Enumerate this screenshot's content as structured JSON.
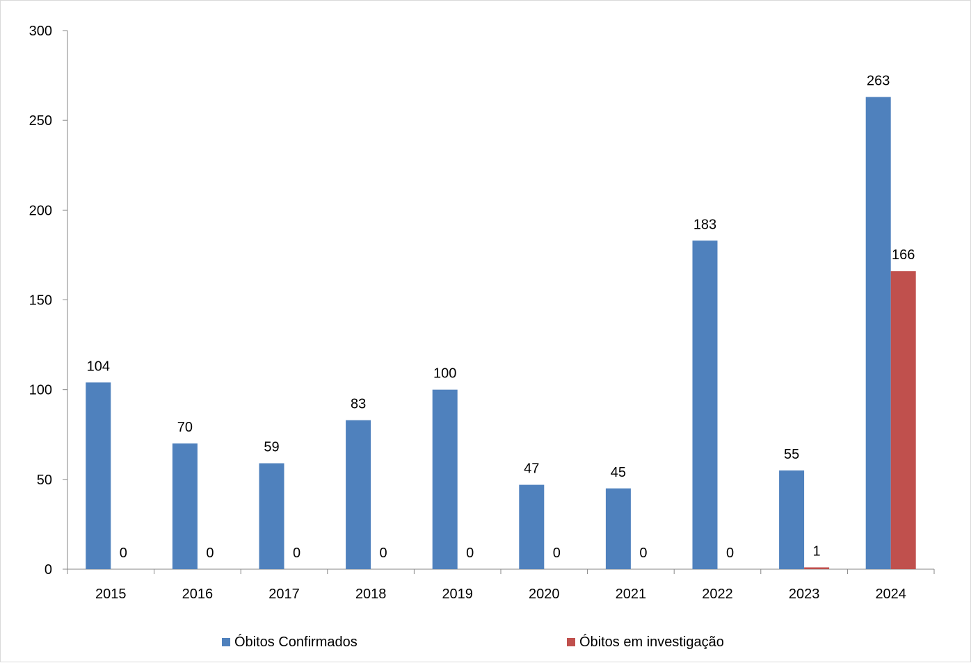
{
  "chart_data": {
    "type": "bar",
    "title": "",
    "xlabel": "",
    "ylabel": "",
    "categories": [
      "2015",
      "2016",
      "2017",
      "2018",
      "2019",
      "2020",
      "2021",
      "2022",
      "2023",
      "2024"
    ],
    "series": [
      {
        "name": "Óbitos Confirmados",
        "color": "#4f81bd",
        "values": [
          104,
          70,
          59,
          83,
          100,
          47,
          45,
          183,
          55,
          263
        ]
      },
      {
        "name": "Óbitos em investigação",
        "color": "#c0504d",
        "values": [
          0,
          0,
          0,
          0,
          0,
          0,
          0,
          0,
          1,
          166
        ]
      }
    ],
    "ylim": [
      0,
      300
    ],
    "yticks": [
      0,
      50,
      100,
      150,
      200,
      250,
      300
    ],
    "grid": false,
    "data_labels": true,
    "legend_position": "bottom"
  }
}
